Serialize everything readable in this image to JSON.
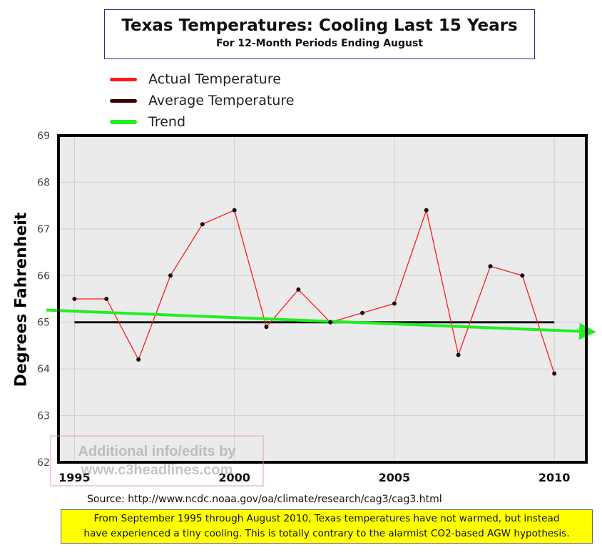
{
  "header": {
    "title": "Texas Temperatures: Cooling Last 15 Years",
    "subtitle": "For 12-Month Periods Ending August"
  },
  "source_text": "Source:  http://www.ncdc.noaa.gov/oa/climate/research/cag3/cag3.html",
  "note_lines": [
    "From September 1995 through August 2010, Texas temperatures have not warmed, but instead",
    "have experienced a tiny cooling. This is totally contrary to the alarmist CO2-based AGW hypothesis."
  ],
  "watermark_lines": [
    "Additional info/edits by",
    "www.c3headlines.com"
  ],
  "chart_data": {
    "type": "line",
    "title": "Texas Temperatures: Cooling Last 15 Years",
    "subtitle": "For 12-Month Periods Ending August",
    "xlabel": "",
    "ylabel": "Degrees Fahrenheit",
    "xlim": [
      1994.5,
      2011
    ],
    "ylim": [
      62,
      69
    ],
    "xticks": [
      1995,
      2000,
      2005,
      2010
    ],
    "yticks": [
      62,
      63,
      64,
      65,
      66,
      67,
      68,
      69
    ],
    "grid": true,
    "legend_position": "top-left",
    "series": [
      {
        "name": "Actual Temperature",
        "color": "#ff1a1a",
        "x": [
          1995,
          1996,
          1997,
          1998,
          1999,
          2000,
          2001,
          2002,
          2003,
          2004,
          2005,
          2006,
          2007,
          2008,
          2009,
          2010
        ],
        "y": [
          65.5,
          65.5,
          64.2,
          66.0,
          67.1,
          67.4,
          64.9,
          65.7,
          65.0,
          65.2,
          65.4,
          67.4,
          64.3,
          66.2,
          66.0,
          63.9
        ]
      },
      {
        "name": "Average Temperature",
        "color": "#3a0000",
        "x": [
          1995,
          2010
        ],
        "y": [
          65.0,
          65.0
        ]
      },
      {
        "name": "Trend",
        "color": "#22ee22",
        "x": [
          1994.5,
          2011
        ],
        "y": [
          65.25,
          64.8
        ]
      }
    ]
  }
}
